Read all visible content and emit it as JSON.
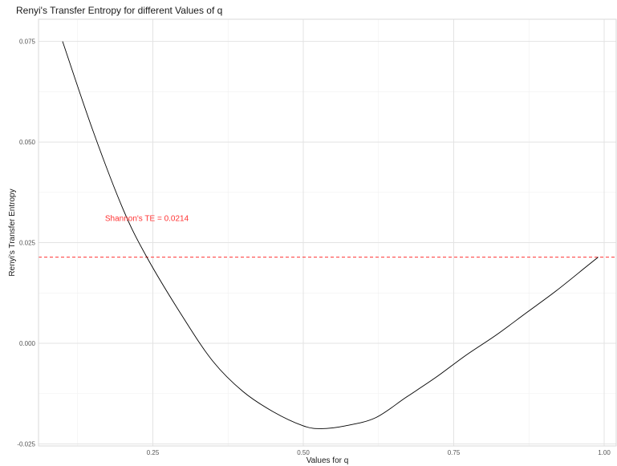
{
  "chart_data": {
    "type": "line",
    "title": "Renyi's Transfer Entropy for different Values of q",
    "xlabel": "Values for q",
    "ylabel": "Renyi's Transfer Entropy",
    "xlim": [
      0.06,
      1.02
    ],
    "ylim": [
      -0.0255,
      0.0805
    ],
    "x_ticks": [
      0.25,
      0.5,
      0.75,
      1.0
    ],
    "x_tick_labels": [
      "0.25",
      "0.50",
      "0.75",
      "1.00"
    ],
    "y_ticks": [
      -0.025,
      0.0,
      0.025,
      0.05,
      0.075
    ],
    "y_tick_labels": [
      "-0.025",
      "0.000",
      "0.025",
      "0.050",
      "0.075"
    ],
    "grid": true,
    "series": [
      {
        "color": "#000000",
        "x": [
          0.1,
          0.15,
          0.2,
          0.24,
          0.3,
          0.35,
          0.4,
          0.45,
          0.5,
          0.53,
          0.57,
          0.62,
          0.67,
          0.72,
          0.77,
          0.82,
          0.87,
          0.92,
          0.97,
          0.99
        ],
        "y": [
          0.075,
          0.053,
          0.0335,
          0.0214,
          0.0065,
          -0.0045,
          -0.012,
          -0.017,
          -0.0205,
          -0.0212,
          -0.0205,
          -0.0185,
          -0.0135,
          -0.0085,
          -0.003,
          0.002,
          0.0075,
          0.013,
          0.019,
          0.0214
        ]
      }
    ],
    "reference_line": {
      "y": 0.0214,
      "style": "dashed",
      "color": "#ff3333"
    },
    "annotations": [
      {
        "text": "Shannon's TE = 0.0214",
        "x": 0.24,
        "y": 0.031,
        "color": "#ff3333"
      }
    ]
  }
}
